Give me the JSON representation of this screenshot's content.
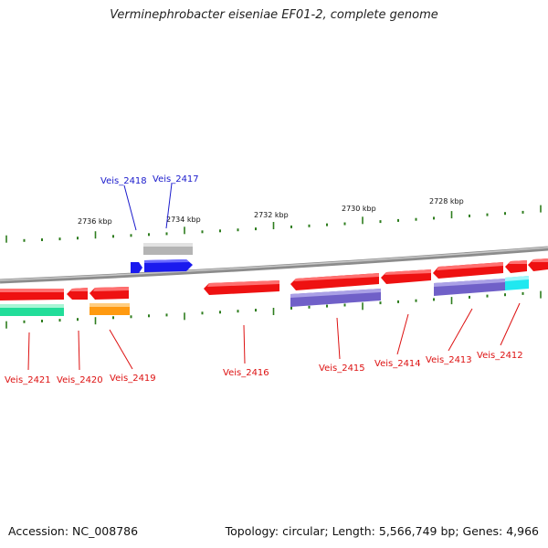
{
  "title": "Verminephrobacter eiseniae EF01-2, complete genome",
  "footer": {
    "accession": "Accession: NC_008786",
    "summary": "Topology: circular; Length: 5,566,749 bp; Genes: 4,966"
  },
  "colors": {
    "backbone": "#8c8c8c",
    "tick": "#2e7d1e",
    "forward_label": "#1a1acc",
    "reverse_label": "#dd1111",
    "gene_red": "#ee1111",
    "gene_blue": "#1a1aee",
    "gene_grey": "#b4b4b4",
    "gene_purple": "#7060c8",
    "gene_green": "#22dd99",
    "gene_orange": "#ff9a10",
    "gene_cyan": "#20e8f0"
  },
  "scale_labels": [
    "2736 kbp",
    "2734 kbp",
    "2732 kbp",
    "2730 kbp",
    "2728 kbp"
  ],
  "forward_genes": [
    "Veis_2418",
    "Veis_2417"
  ],
  "reverse_genes": [
    "Veis_2421",
    "Veis_2420",
    "Veis_2419",
    "Veis_2416",
    "Veis_2415",
    "Veis_2414",
    "Veis_2413",
    "Veis_2412"
  ]
}
